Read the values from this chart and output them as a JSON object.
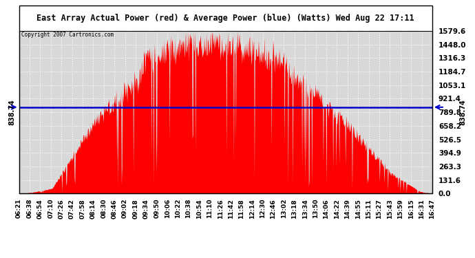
{
  "title": "East Array Actual Power (red) & Average Power (blue) (Watts) Wed Aug 22 17:11",
  "copyright": "Copyright 2007 Cartronics.com",
  "average_power": 838.74,
  "y_max": 1579.6,
  "y_min": 0.0,
  "ytick_vals": [
    1579.6,
    1448.0,
    1316.3,
    1184.7,
    1053.1,
    921.4,
    789.8,
    658.2,
    526.5,
    394.9,
    263.3,
    131.6,
    0.0
  ],
  "ytick_labels": [
    "1579.6",
    "1448.0",
    "1316.3",
    "1184.7",
    "1053.1",
    "921.4",
    "789.8",
    "658.2",
    "526.5",
    "394.9",
    "263.3",
    "131.6",
    "0.0"
  ],
  "xtick_labels": [
    "06:21",
    "06:38",
    "06:54",
    "07:10",
    "07:26",
    "07:42",
    "07:58",
    "08:14",
    "08:30",
    "08:46",
    "09:02",
    "09:18",
    "09:34",
    "09:50",
    "10:06",
    "10:22",
    "10:38",
    "10:54",
    "11:10",
    "11:26",
    "11:42",
    "11:58",
    "12:14",
    "12:30",
    "12:46",
    "13:02",
    "13:18",
    "13:34",
    "13:50",
    "14:06",
    "14:22",
    "14:39",
    "14:55",
    "15:11",
    "15:27",
    "15:43",
    "15:59",
    "16:15",
    "16:31",
    "16:47"
  ],
  "background_color": "#ffffff",
  "plot_bg_color": "#d8d8d8",
  "grid_color": "#ffffff",
  "area_color": "#ff0000",
  "line_color": "#0000cc",
  "border_color": "#000000",
  "avg_label_value": "838.74"
}
